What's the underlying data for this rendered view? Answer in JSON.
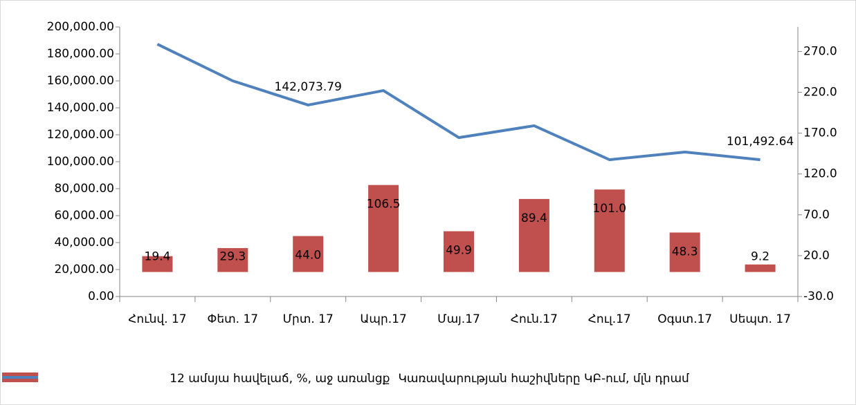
{
  "chart_data": {
    "type": "bar-line",
    "categories": [
      "Հունվ. 17",
      "Փետ. 17",
      "Մրտ. 17",
      "Ապր.17",
      "Մայ.17",
      "Հուն.17",
      "Հուլ.17",
      "Օգստ.17",
      "Սեպտ. 17"
    ],
    "series": [
      {
        "name": "12 ամսյա հավելաճ, %, աջ առանցք",
        "type": "bar",
        "axis": "y2",
        "color": "#c0504d",
        "values": [
          19.4,
          29.3,
          44.0,
          106.5,
          49.9,
          89.4,
          101.0,
          48.3,
          9.2
        ],
        "value_labels": [
          "19.4",
          "29.3",
          "44.0",
          "106.5",
          "49.9",
          "89.4",
          "101.0",
          "48.3",
          "9.2"
        ]
      },
      {
        "name": "Կառավարության հաշիվները ԿԲ-ում, մլն դրամ",
        "type": "line",
        "axis": "y",
        "color": "#4f81bd",
        "values": [
          187200,
          160000,
          142073.79,
          152800,
          117900,
          126700,
          101500,
          107200,
          101492.64
        ],
        "value_labels": [
          null,
          null,
          "142,073.79",
          null,
          null,
          null,
          null,
          null,
          "101,492.64"
        ]
      }
    ],
    "ylim": [
      0,
      200000
    ],
    "yticks": [
      {
        "value": 0,
        "label": "0.00"
      },
      {
        "value": 20000,
        "label": "20,000.00"
      },
      {
        "value": 40000,
        "label": "40,000.00"
      },
      {
        "value": 60000,
        "label": "60,000.00"
      },
      {
        "value": 80000,
        "label": "80,000.00"
      },
      {
        "value": 100000,
        "label": "100,000.00"
      },
      {
        "value": 120000,
        "label": "120,000.00"
      },
      {
        "value": 140000,
        "label": "140,000.00"
      },
      {
        "value": 160000,
        "label": "160,000.00"
      },
      {
        "value": 180000,
        "label": "180,000.00"
      },
      {
        "value": 200000,
        "label": "200,000.00"
      }
    ],
    "y2lim": [
      -30,
      300
    ],
    "y2ticks": [
      {
        "value": -30,
        "label": "-30.0"
      },
      {
        "value": 20,
        "label": "20.0"
      },
      {
        "value": 70,
        "label": "70.0"
      },
      {
        "value": 120,
        "label": "120.0"
      },
      {
        "value": 170,
        "label": "170.0"
      },
      {
        "value": 220,
        "label": "220.0"
      },
      {
        "value": 270,
        "label": "270.0"
      }
    ],
    "grid": false,
    "legend": "bottom"
  }
}
